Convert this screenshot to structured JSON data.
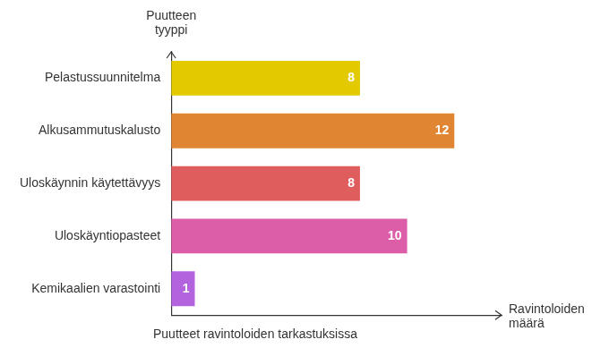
{
  "chart_data": {
    "type": "bar",
    "orientation": "horizontal",
    "title": "Puutteet ravintoloiden tarkastuksissa",
    "x_label": "Ravintoloiden määrä",
    "y_label": "Puutteen tyyppi",
    "categories": [
      "Pelastussuunnitelma",
      "Alkusammutuskalusto",
      "Uloskäynnin käytettävyys",
      "Uloskäyntiopasteet",
      "Kemikaalien varastointi"
    ],
    "values": [
      8,
      12,
      8,
      10,
      1
    ],
    "colors": [
      "#e3c900",
      "#e08632",
      "#e05d5d",
      "#dc5ea8",
      "#b463de"
    ],
    "xlim": [
      0,
      14
    ],
    "grid": false,
    "data_labels": true,
    "tick_labels": "y"
  }
}
